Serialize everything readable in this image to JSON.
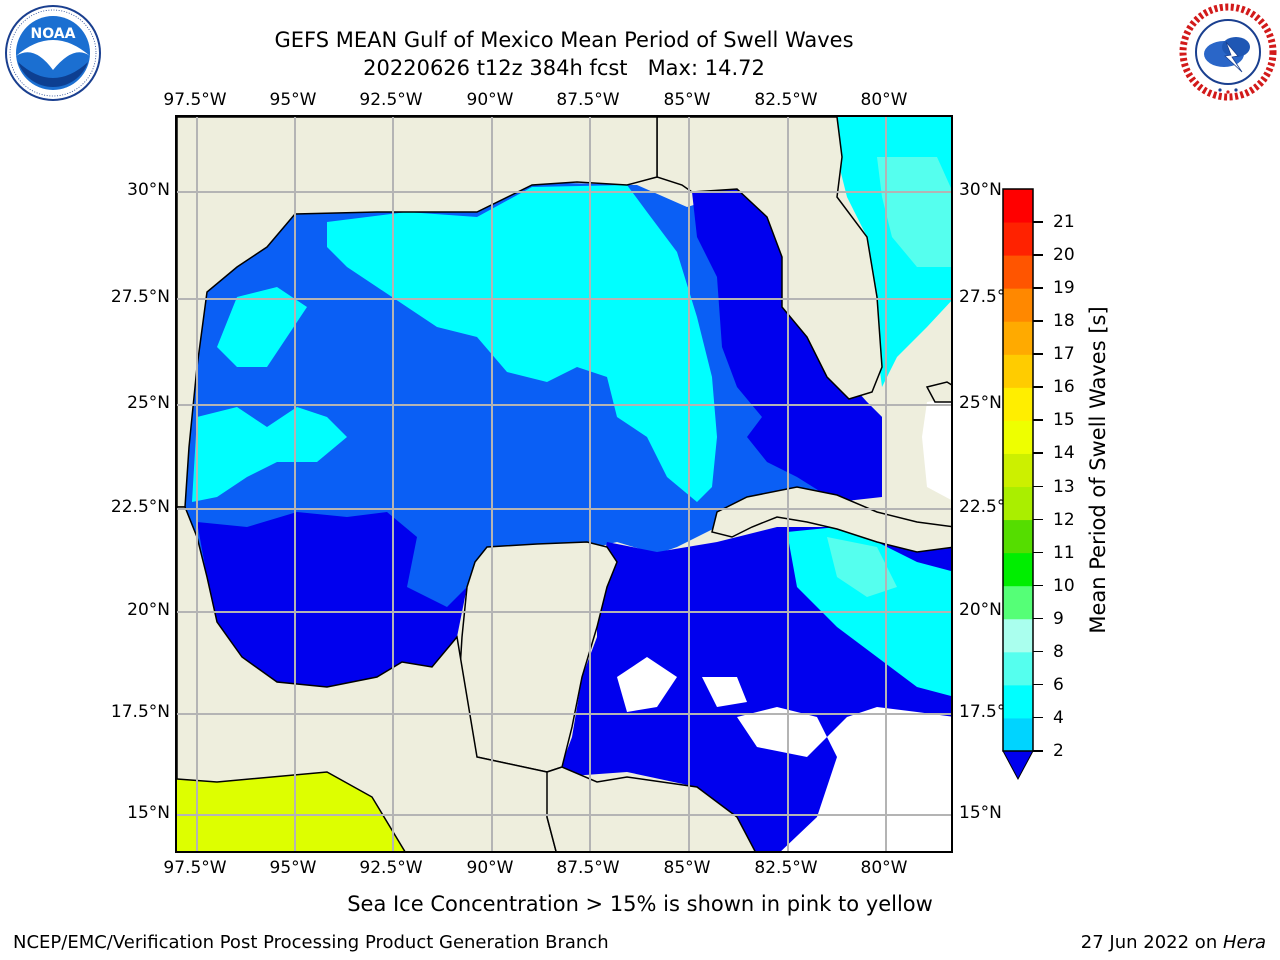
{
  "header": {
    "title": "GEFS MEAN Gulf of Mexico Mean Period of Swell Waves",
    "subtitle": "20220626 t12z 384h fcst   Max: 14.72"
  },
  "logos": {
    "left": {
      "name": "NOAA",
      "ring_text": "NATIONAL OCEANIC AND ATMOSPHERIC ADMINISTRATION · U.S. DEPARTMENT OF COMMERCE"
    },
    "right": {
      "name": "NATIONAL WEATHER SERVICE"
    }
  },
  "map": {
    "lon_labels": [
      "97.5°W",
      "95°W",
      "92.5°W",
      "90°W",
      "87.5°W",
      "85°W",
      "82.5°W",
      "80°W"
    ],
    "lat_labels_left": [
      "30°N",
      "27.5°N",
      "25°N",
      "22.5°N",
      "20°N",
      "17.5°N",
      "15°N"
    ],
    "lat_labels_right": [
      "30°N",
      "27.5°N",
      "25°N",
      "22.5°N",
      "20°N",
      "17.5°N",
      "15°N"
    ],
    "colors": {
      "land": "#eeeedd",
      "level_2_4": "#0a5ff5",
      "level_4_6": "#00ffff",
      "level_6_8": "#55ffee",
      "below_2": "#0000ee",
      "high_swell": "#ddff00",
      "grid": "#b4b4b4"
    }
  },
  "colorbar": {
    "label": "Mean Period of Swell Waves [s]",
    "ticks": [
      "2",
      "4",
      "6",
      "8",
      "9",
      "10",
      "11",
      "12",
      "13",
      "14",
      "15",
      "16",
      "17",
      "18",
      "19",
      "20",
      "21"
    ],
    "colors": [
      "#0a64f5",
      "#00d4ff",
      "#00ffff",
      "#55ffee",
      "#aaffee",
      "#55ff77",
      "#00ee00",
      "#55dd00",
      "#aaee00",
      "#ccf000",
      "#eeff00",
      "#ffee00",
      "#ffcc00",
      "#ffaa00",
      "#ff8800",
      "#ff5500",
      "#ff2200",
      "#ff0000"
    ]
  },
  "footer": {
    "note": "Sea Ice Concentration > 15% is shown in pink to yellow",
    "left": "NCEP/EMC/Verification Post Processing Product Generation Branch",
    "right_date": "27 Jun 2022 on ",
    "right_host": "Hera"
  }
}
